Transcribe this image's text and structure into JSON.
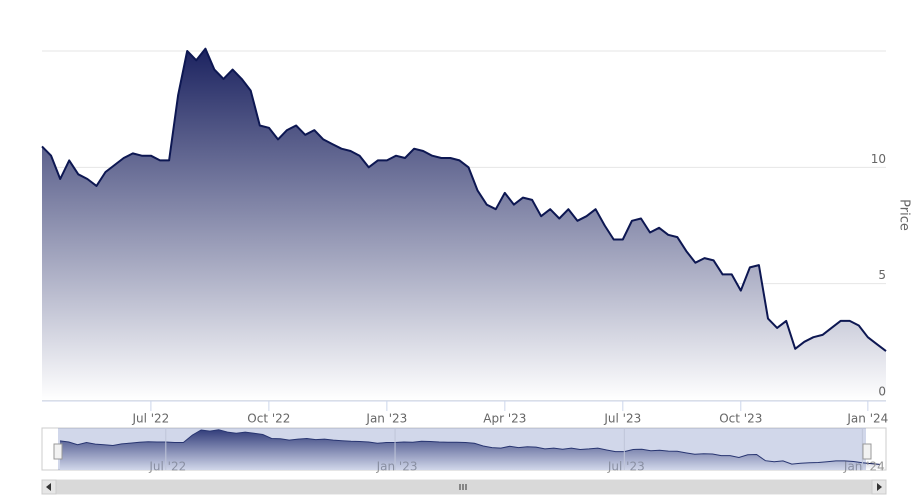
{
  "chart_data": {
    "type": "area",
    "y_axis_label": "Price",
    "color": "#0d1752",
    "grid": true,
    "ylim": [
      0,
      15
    ],
    "yticks": [
      0,
      5,
      10
    ],
    "categories": [
      null,
      null,
      null,
      null,
      null,
      null,
      null,
      null,
      null,
      null,
      null,
      null,
      "Jul '22",
      null,
      null,
      null,
      null,
      null,
      null,
      null,
      null,
      null,
      null,
      null,
      null,
      "Oct '22",
      null,
      null,
      null,
      null,
      null,
      null,
      null,
      null,
      null,
      null,
      null,
      null,
      "Jan '23",
      null,
      null,
      null,
      null,
      null,
      null,
      null,
      null,
      null,
      null,
      null,
      null,
      "Apr '23",
      null,
      null,
      null,
      null,
      null,
      null,
      null,
      null,
      null,
      null,
      null,
      null,
      "Jul '23",
      null,
      null,
      null,
      null,
      null,
      null,
      null,
      null,
      null,
      null,
      null,
      null,
      "Oct '23",
      null,
      null,
      null,
      null,
      null,
      null,
      null,
      null,
      null,
      null,
      null,
      null,
      null,
      "Jan '24",
      null,
      null
    ],
    "values": [
      10.9,
      10.5,
      9.5,
      10.3,
      9.7,
      9.5,
      9.2,
      9.8,
      10.1,
      10.4,
      10.6,
      10.5,
      10.5,
      10.3,
      10.3,
      13.1,
      15.0,
      14.6,
      15.1,
      14.2,
      13.8,
      14.2,
      13.8,
      13.3,
      11.8,
      11.7,
      11.2,
      11.6,
      11.8,
      11.4,
      11.6,
      11.2,
      11.0,
      10.8,
      10.7,
      10.5,
      10.0,
      10.3,
      10.3,
      10.5,
      10.4,
      10.8,
      10.7,
      10.5,
      10.4,
      10.4,
      10.3,
      10.0,
      9.0,
      8.4,
      8.2,
      8.9,
      8.4,
      8.7,
      8.6,
      7.9,
      8.2,
      7.8,
      8.2,
      7.7,
      7.9,
      8.2,
      7.5,
      6.9,
      6.9,
      7.7,
      7.8,
      7.2,
      7.4,
      7.1,
      7.0,
      6.4,
      5.9,
      6.1,
      6.0,
      5.4,
      5.4,
      4.7,
      5.7,
      5.8,
      3.5,
      3.1,
      3.4,
      2.2,
      2.5,
      2.7,
      2.8,
      3.1,
      3.4,
      3.4,
      3.2,
      2.7,
      2.4,
      2.1
    ]
  }
}
